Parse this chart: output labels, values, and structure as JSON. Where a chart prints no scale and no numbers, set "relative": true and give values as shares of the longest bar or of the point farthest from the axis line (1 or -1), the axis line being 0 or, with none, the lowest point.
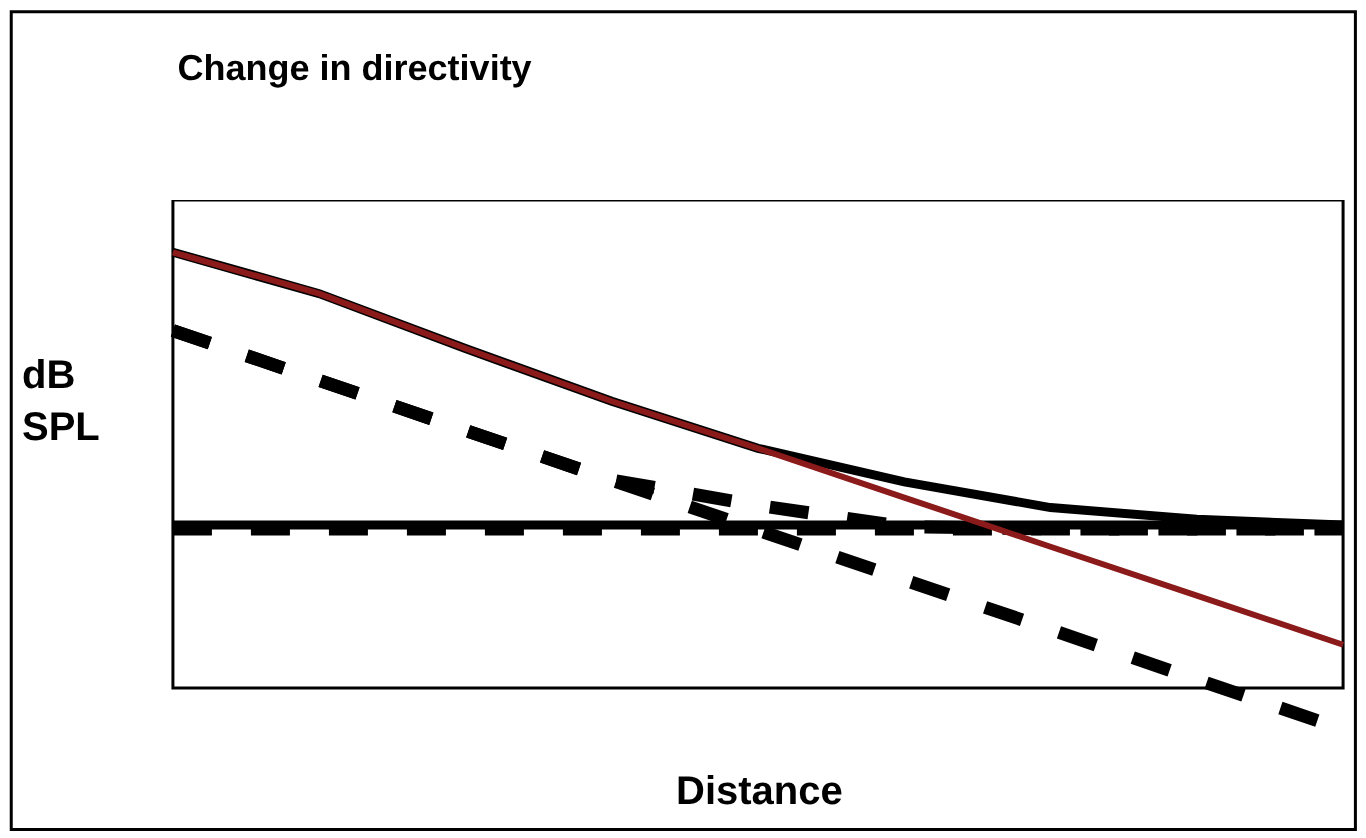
{
  "chart_data": {
    "type": "line",
    "title": "Change in directivity",
    "xlabel": "Distance",
    "ylabel": "dB\nSPL",
    "relative": true,
    "categories": [
      null,
      null,
      null,
      null,
      null,
      null,
      null,
      null,
      null
    ],
    "series": [
      {
        "color": "#000000",
        "line_style": "solid",
        "values": [
          0.374,
          0.374,
          0.374,
          0.374,
          0.374,
          0.374,
          0.374,
          0.374,
          0.374
        ]
      },
      {
        "color": "#000000",
        "line_style": "dashed",
        "values": [
          0.365,
          0.365,
          0.365,
          0.365,
          0.365,
          0.365,
          0.365,
          0.365,
          0.365
        ]
      },
      {
        "color": "#000000",
        "line_style": "dashed",
        "values": [
          0.82,
          0.706,
          0.591,
          0.477,
          0.362,
          0.248,
          0.134,
          0.019,
          -0.095
        ]
      },
      {
        "color": "#000000",
        "line_style": "dashed",
        "values": [
          0.82,
          0.706,
          0.591,
          0.477,
          0.419,
          0.37,
          0.365,
          0.365,
          0.365
        ]
      },
      {
        "color": "#000000",
        "line_style": "solid",
        "values": [
          1.0,
          0.905,
          0.779,
          0.658,
          0.55,
          0.473,
          0.414,
          0.387,
          0.374
        ]
      },
      {
        "color": "#8b1a1a",
        "line_style": "solid",
        "values": [
          1.0,
          0.905,
          0.779,
          0.658,
          0.55,
          0.437,
          0.324,
          0.212,
          0.099
        ]
      }
    ]
  }
}
